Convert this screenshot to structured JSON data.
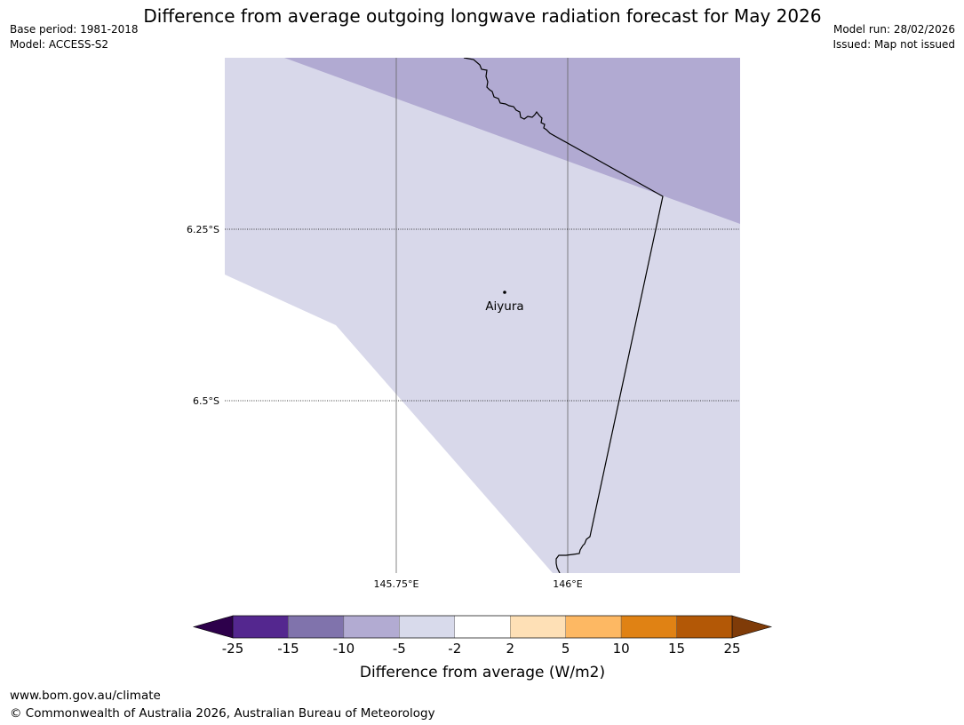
{
  "title": "Difference from average outgoing longwave radiation forecast for May 2026",
  "meta_left": {
    "base_period": "Base period: 1981-2018",
    "model": "Model: ACCESS-S2"
  },
  "meta_right": {
    "model_run": "Model run: 28/02/2026",
    "issued": "Issued: Map not issued"
  },
  "map": {
    "latitude_labels": [
      "6.25°S",
      "6.5°S"
    ],
    "longitude_labels": [
      "145.75°E",
      "146°E"
    ],
    "location": {
      "name": "Aiyura"
    },
    "colors": {
      "region_minus_10_to_minus_5": "#b1aad2",
      "region_minus_5_to_minus_2": "#d8d8ea",
      "coastline": "#000000",
      "gridline": "#555555"
    }
  },
  "colorbar": {
    "label": "Difference from average (W/m2)",
    "ticks": [
      "-25",
      "-15",
      "-10",
      "-5",
      "-2",
      "2",
      "5",
      "10",
      "15",
      "25"
    ],
    "bins": [
      {
        "range": "-25 to -15",
        "color": "#54278f"
      },
      {
        "range": "-15 to -10",
        "color": "#8073ac"
      },
      {
        "range": "-10 to -5",
        "color": "#b2abd2"
      },
      {
        "range": "-5 to -2",
        "color": "#d8daeb"
      },
      {
        "range": "-2 to 2",
        "color": "#ffffff"
      },
      {
        "range": "2 to 5",
        "color": "#fee0b6"
      },
      {
        "range": "5 to 10",
        "color": "#fdb863"
      },
      {
        "range": "10 to 15",
        "color": "#e08214"
      },
      {
        "range": "15 to 25",
        "color": "#b35806"
      }
    ],
    "extend_low_color": "#2d004b",
    "extend_high_color": "#7f3b08"
  },
  "footer": {
    "url": "www.bom.gov.au/climate",
    "copyright": "© Commonwealth of Australia 2026, Australian Bureau of Meteorology"
  }
}
